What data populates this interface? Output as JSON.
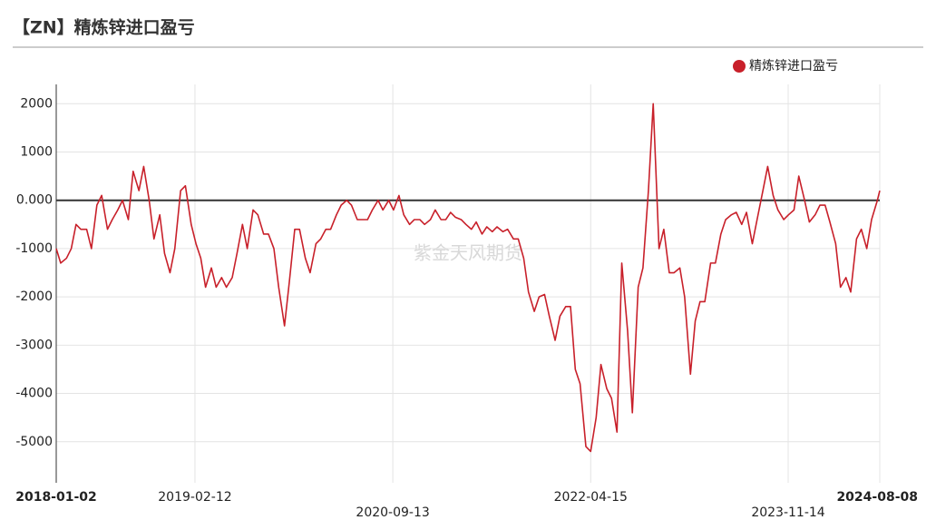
{
  "chart_data": {
    "type": "line",
    "title": "【ZN】精炼锌进口盈亏",
    "watermark": "紫金天风期货",
    "legend_position": "top-right",
    "grid": true,
    "xlim": [
      "2018-01-02",
      "2024-08-08"
    ],
    "xticks": [
      "2018-01-02",
      "2019-02-12",
      "2020-09-13",
      "2022-04-15",
      "2023-11-14",
      "2024-08-08"
    ],
    "ylim": [
      -5850,
      2400
    ],
    "yticks": [
      -5000,
      -4000,
      -3000,
      -2000,
      -1000,
      {
        "value": 0,
        "label": "0.000"
      },
      1000,
      2000
    ],
    "x": [
      "2018-01-02",
      "2018-01-15",
      "2018-02-01",
      "2018-02-15",
      "2018-03-01",
      "2018-03-15",
      "2018-04-01",
      "2018-04-15",
      "2018-05-01",
      "2018-05-15",
      "2018-06-01",
      "2018-06-15",
      "2018-07-01",
      "2018-07-15",
      "2018-08-01",
      "2018-08-15",
      "2018-09-01",
      "2018-09-15",
      "2018-10-01",
      "2018-10-15",
      "2018-11-01",
      "2018-11-15",
      "2018-12-01",
      "2018-12-15",
      "2019-01-01",
      "2019-01-15",
      "2019-02-01",
      "2019-02-15",
      "2019-03-01",
      "2019-03-15",
      "2019-04-01",
      "2019-04-15",
      "2019-05-01",
      "2019-05-15",
      "2019-06-01",
      "2019-06-15",
      "2019-07-01",
      "2019-07-15",
      "2019-08-01",
      "2019-08-15",
      "2019-09-01",
      "2019-09-15",
      "2019-10-01",
      "2019-10-15",
      "2019-11-01",
      "2019-11-15",
      "2019-12-01",
      "2019-12-15",
      "2020-01-01",
      "2020-01-15",
      "2020-02-01",
      "2020-02-15",
      "2020-03-01",
      "2020-03-15",
      "2020-04-01",
      "2020-04-15",
      "2020-05-01",
      "2020-05-15",
      "2020-06-01",
      "2020-06-15",
      "2020-07-01",
      "2020-07-15",
      "2020-08-01",
      "2020-08-15",
      "2020-09-01",
      "2020-09-15",
      "2020-10-01",
      "2020-10-15",
      "2020-11-01",
      "2020-11-15",
      "2020-12-01",
      "2020-12-15",
      "2021-01-01",
      "2021-01-15",
      "2021-02-01",
      "2021-02-15",
      "2021-03-01",
      "2021-03-15",
      "2021-04-01",
      "2021-04-15",
      "2021-05-01",
      "2021-05-15",
      "2021-06-01",
      "2021-06-15",
      "2021-07-01",
      "2021-07-15",
      "2021-08-01",
      "2021-08-15",
      "2021-09-01",
      "2021-09-15",
      "2021-10-01",
      "2021-10-15",
      "2021-11-01",
      "2021-11-15",
      "2021-12-01",
      "2021-12-15",
      "2022-01-01",
      "2022-01-15",
      "2022-02-01",
      "2022-02-15",
      "2022-03-01",
      "2022-03-15",
      "2022-04-01",
      "2022-04-15",
      "2022-05-01",
      "2022-05-15",
      "2022-06-01",
      "2022-06-15",
      "2022-07-01",
      "2022-07-15",
      "2022-08-01",
      "2022-08-15",
      "2022-09-01",
      "2022-09-15",
      "2022-10-01",
      "2022-10-15",
      "2022-11-01",
      "2022-11-15",
      "2022-12-01",
      "2022-12-15",
      "2023-01-01",
      "2023-01-15",
      "2023-02-01",
      "2023-02-15",
      "2023-03-01",
      "2023-03-15",
      "2023-04-01",
      "2023-04-15",
      "2023-05-01",
      "2023-05-15",
      "2023-06-01",
      "2023-06-15",
      "2023-07-01",
      "2023-07-15",
      "2023-08-01",
      "2023-08-15",
      "2023-09-01",
      "2023-09-15",
      "2023-10-01",
      "2023-10-15",
      "2023-11-01",
      "2023-11-15",
      "2023-12-01",
      "2023-12-15",
      "2024-01-01",
      "2024-01-15",
      "2024-02-01",
      "2024-02-15",
      "2024-03-01",
      "2024-03-15",
      "2024-04-01",
      "2024-04-15",
      "2024-05-01",
      "2024-05-15",
      "2024-06-01",
      "2024-06-15",
      "2024-07-01",
      "2024-07-15",
      "2024-08-01",
      "2024-08-08"
    ],
    "series": [
      {
        "name": "精炼锌进口盈亏",
        "color": "#c8202a",
        "values": [
          -1000,
          -1300,
          -1200,
          -1000,
          -500,
          -600,
          -600,
          -1000,
          -100,
          100,
          -600,
          -400,
          -200,
          0,
          -400,
          600,
          200,
          700,
          0,
          -800,
          -300,
          -1100,
          -1500,
          -1000,
          200,
          300,
          -500,
          -900,
          -1200,
          -1800,
          -1400,
          -1800,
          -1600,
          -1800,
          -1600,
          -1100,
          -500,
          -1000,
          -200,
          -300,
          -700,
          -700,
          -1000,
          -1800,
          -2600,
          -1700,
          -600,
          -600,
          -1200,
          -1500,
          -900,
          -800,
          -600,
          -600,
          -300,
          -100,
          0,
          -100,
          -400,
          -400,
          -400,
          -200,
          0,
          -200,
          0,
          -200,
          100,
          -300,
          -500,
          -400,
          -400,
          -500,
          -400,
          -200,
          -400,
          -400,
          -250,
          -350,
          -400,
          -500,
          -600,
          -450,
          -700,
          -550,
          -650,
          -550,
          -650,
          -600,
          -800,
          -800,
          -1200,
          -1900,
          -2300,
          -2000,
          -1950,
          -2400,
          -2900,
          -2400,
          -2200,
          -2200,
          -3500,
          -3800,
          -5100,
          -5200,
          -4500,
          -3400,
          -3900,
          -4100,
          -4800,
          -1300,
          -2700,
          -4400,
          -1800,
          -1400,
          200,
          2000,
          -1000,
          -600,
          -1500,
          -1500,
          -1400,
          -2000,
          -3600,
          -2500,
          -2100,
          -2100,
          -1300,
          -1300,
          -700,
          -400,
          -300,
          -250,
          -500,
          -250,
          -900,
          -400,
          200,
          700,
          100,
          -200,
          -400,
          -300,
          -200,
          500,
          0,
          -450,
          -300,
          -100,
          -100,
          -450,
          -900,
          -1800,
          -1600,
          -1900,
          -800,
          -600,
          -1000,
          -400,
          0,
          200
        ]
      }
    ]
  }
}
